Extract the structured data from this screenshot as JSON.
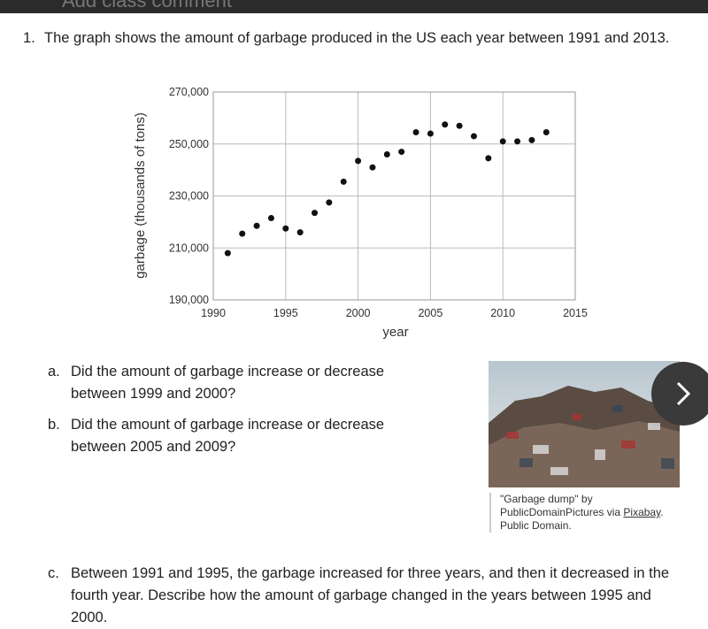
{
  "header": {
    "title": "Add class comment"
  },
  "question": {
    "number": "1.",
    "text": "The graph shows the amount of garbage produced in the US each year between 1991 and 2013."
  },
  "chart_data": {
    "type": "scatter",
    "xlabel": "year",
    "ylabel": "garbage (thousands of tons)",
    "x": [
      1991,
      1992,
      1993,
      1994,
      1995,
      1996,
      1997,
      1998,
      1999,
      2000,
      2001,
      2002,
      2003,
      2004,
      2005,
      2006,
      2007,
      2008,
      2009,
      2010,
      2011,
      2012,
      2013
    ],
    "values": [
      208000,
      215500,
      218500,
      221500,
      217500,
      216000,
      223500,
      227500,
      235500,
      243500,
      241000,
      246000,
      247000,
      254500,
      254000,
      257500,
      257000,
      253000,
      244500,
      251000,
      251000,
      251500,
      254500
    ],
    "color": "#111111",
    "xlim": [
      1990,
      2015
    ],
    "xticks": [
      1990,
      1995,
      2000,
      2005,
      2010,
      2015
    ],
    "ylim": [
      190000,
      270000
    ],
    "yticks": [
      {
        "value": 190000,
        "label": "190,000"
      },
      {
        "value": 210000,
        "label": "210,000"
      },
      {
        "value": 230000,
        "label": "230,000"
      },
      {
        "value": 250000,
        "label": "250,000"
      },
      {
        "value": 270000,
        "label": "270,000"
      }
    ],
    "grid": true
  },
  "parts": [
    {
      "label": "a.",
      "text": "Did the amount of garbage increase or decrease between 1999 and 2000?"
    },
    {
      "label": "b.",
      "text": "Did the amount of garbage increase or decrease between 2005 and 2009?"
    },
    {
      "label": "c.",
      "text": "Between 1991 and 1995, the garbage increased for three years, and then it decreased in the fourth year. Describe how the amount of garbage changed in the years between 1995 and 2000."
    }
  ],
  "caption": {
    "text": "\"Garbage dump\" by PublicDomainPictures via",
    "link": "Pixabay",
    "after": ". Public Domain."
  }
}
